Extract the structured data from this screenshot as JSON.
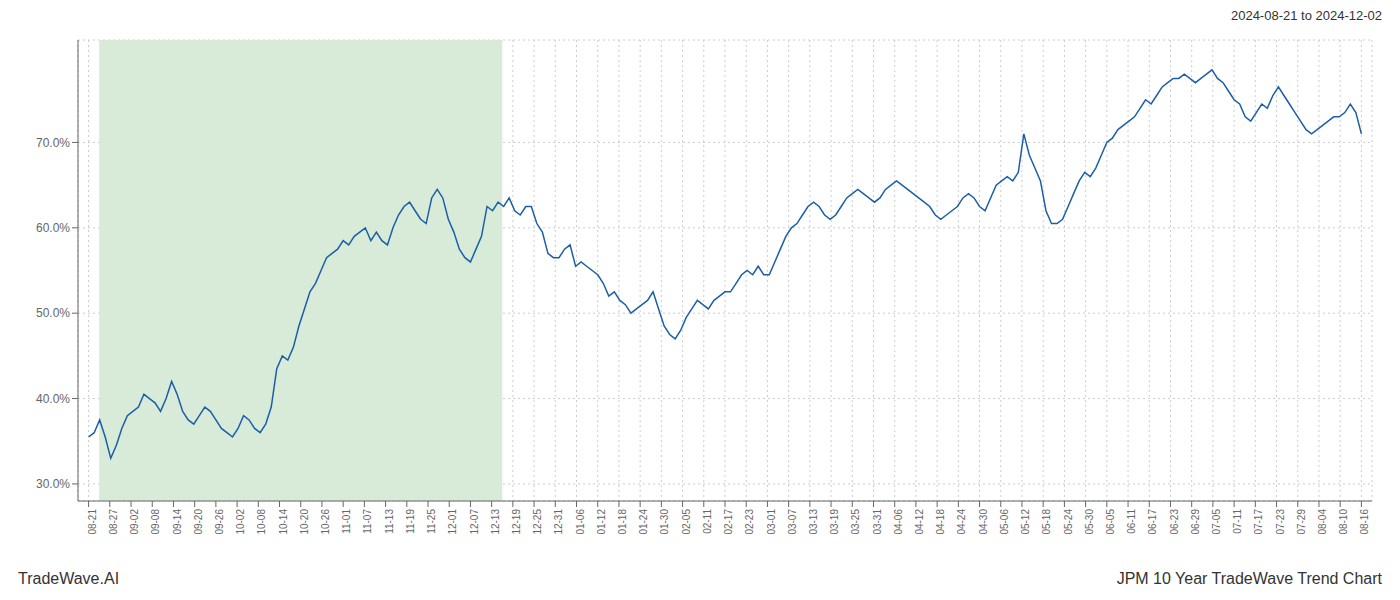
{
  "chart_data": {
    "type": "line",
    "title": "JPM 10 Year TradeWave Trend Chart",
    "subtitle": "2024-08-21 to 2024-12-02",
    "annotations": [
      "TradeWave.AI"
    ],
    "color": "#1a5fa8",
    "grid": true,
    "shade": {
      "x": [
        0.5,
        19.5
      ],
      "color": "#d8ead8"
    },
    "xlim": [
      -0.5,
      60.5
    ],
    "xticks": [
      {
        "value": 0,
        "label": "08-21"
      },
      {
        "value": 1,
        "label": "08-27"
      },
      {
        "value": 2,
        "label": "09-02"
      },
      {
        "value": 3,
        "label": "09-08"
      },
      {
        "value": 4,
        "label": "09-14"
      },
      {
        "value": 5,
        "label": "09-20"
      },
      {
        "value": 6,
        "label": "09-26"
      },
      {
        "value": 7,
        "label": "10-02"
      },
      {
        "value": 8,
        "label": "10-08"
      },
      {
        "value": 9,
        "label": "10-14"
      },
      {
        "value": 10,
        "label": "10-20"
      },
      {
        "value": 11,
        "label": "10-26"
      },
      {
        "value": 12,
        "label": "11-01"
      },
      {
        "value": 13,
        "label": "11-07"
      },
      {
        "value": 14,
        "label": "11-13"
      },
      {
        "value": 15,
        "label": "11-19"
      },
      {
        "value": 16,
        "label": "11-25"
      },
      {
        "value": 17,
        "label": "12-01"
      },
      {
        "value": 18,
        "label": "12-07"
      },
      {
        "value": 19,
        "label": "12-13"
      },
      {
        "value": 20,
        "label": "12-19"
      },
      {
        "value": 21,
        "label": "12-25"
      },
      {
        "value": 22,
        "label": "12-31"
      },
      {
        "value": 23,
        "label": "01-06"
      },
      {
        "value": 24,
        "label": "01-12"
      },
      {
        "value": 25,
        "label": "01-18"
      },
      {
        "value": 26,
        "label": "01-24"
      },
      {
        "value": 27,
        "label": "01-30"
      },
      {
        "value": 28,
        "label": "02-05"
      },
      {
        "value": 29,
        "label": "02-11"
      },
      {
        "value": 30,
        "label": "02-17"
      },
      {
        "value": 31,
        "label": "02-23"
      },
      {
        "value": 32,
        "label": "03-01"
      },
      {
        "value": 33,
        "label": "03-07"
      },
      {
        "value": 34,
        "label": "03-13"
      },
      {
        "value": 35,
        "label": "03-19"
      },
      {
        "value": 36,
        "label": "03-25"
      },
      {
        "value": 37,
        "label": "03-31"
      },
      {
        "value": 38,
        "label": "04-06"
      },
      {
        "value": 39,
        "label": "04-12"
      },
      {
        "value": 40,
        "label": "04-18"
      },
      {
        "value": 41,
        "label": "04-24"
      },
      {
        "value": 42,
        "label": "04-30"
      },
      {
        "value": 43,
        "label": "05-06"
      },
      {
        "value": 44,
        "label": "05-12"
      },
      {
        "value": 45,
        "label": "05-18"
      },
      {
        "value": 46,
        "label": "05-24"
      },
      {
        "value": 47,
        "label": "05-30"
      },
      {
        "value": 48,
        "label": "06-05"
      },
      {
        "value": 49,
        "label": "06-11"
      },
      {
        "value": 50,
        "label": "06-17"
      },
      {
        "value": 51,
        "label": "06-23"
      },
      {
        "value": 52,
        "label": "06-29"
      },
      {
        "value": 53,
        "label": "07-05"
      },
      {
        "value": 54,
        "label": "07-11"
      },
      {
        "value": 55,
        "label": "07-17"
      },
      {
        "value": 56,
        "label": "07-23"
      },
      {
        "value": 57,
        "label": "07-29"
      },
      {
        "value": 58,
        "label": "08-04"
      },
      {
        "value": 59,
        "label": "08-10"
      },
      {
        "value": 60,
        "label": "08-16"
      }
    ],
    "ylim": [
      28,
      82
    ],
    "yticks": [
      {
        "value": 30,
        "label": "30.0%"
      },
      {
        "value": 40,
        "label": "40.0%"
      },
      {
        "value": 50,
        "label": "50.0%"
      },
      {
        "value": 60,
        "label": "60.0%"
      },
      {
        "value": 70,
        "label": "70.0%"
      }
    ],
    "x": [
      0,
      0.26087,
      0.521739,
      0.782609,
      1.043478,
      1.304348,
      1.565217,
      1.826087,
      2.086957,
      2.347826,
      2.608696,
      2.869565,
      3.130435,
      3.391304,
      3.652174,
      3.913043,
      4.173913,
      4.434783,
      4.695652,
      4.956522,
      5.217391,
      5.478261,
      5.73913,
      6,
      6.26087,
      6.521739,
      6.782609,
      7.043478,
      7.304348,
      7.565217,
      7.826087,
      8.086957,
      8.347826,
      8.608696,
      8.869565,
      9.130435,
      9.391304,
      9.652174,
      9.913043,
      10.173913,
      10.434783,
      10.695652,
      10.956522,
      11.217391,
      11.478261,
      11.73913,
      12,
      12.26087,
      12.521739,
      12.782609,
      13.043478,
      13.304348,
      13.565217,
      13.826087,
      14.086957,
      14.347826,
      14.608696,
      14.869565,
      15.130435,
      15.391304,
      15.652174,
      15.913043,
      16.173913,
      16.434783,
      16.695652,
      16.956522,
      17.217391,
      17.478261,
      17.73913,
      18,
      18.26087,
      18.521739,
      18.782609,
      19.043478,
      19.304348,
      19.565217,
      19.826087,
      20.086957,
      20.347826,
      20.608696,
      20.869565,
      21.130435,
      21.391304,
      21.652174,
      21.913043,
      22.173913,
      22.434783,
      22.695652,
      22.956522,
      23.217391,
      23.478261,
      23.73913,
      24,
      24.26087,
      24.521739,
      24.782609,
      25.043478,
      25.304348,
      25.565217,
      25.826087,
      26.086957,
      26.347826,
      26.608696,
      26.869565,
      27.130435,
      27.391304,
      27.652174,
      27.913043,
      28.173913,
      28.434783,
      28.695652,
      28.956522,
      29.217391,
      29.478261,
      29.73913,
      30,
      30.26087,
      30.521739,
      30.782609,
      31.043478,
      31.304348,
      31.565217,
      31.826087,
      32.086957,
      32.347826,
      32.608696,
      32.869565,
      33.130435,
      33.391304,
      33.652174,
      33.913043,
      34.173913,
      34.434783,
      34.695652,
      34.956522,
      35.217391,
      35.478261,
      35.73913,
      36,
      36.26087,
      36.521739,
      36.782609,
      37.043478,
      37.304348,
      37.565217,
      37.826087,
      38.086957,
      38.347826,
      38.608696,
      38.869565,
      39.130435,
      39.391304,
      39.652174,
      39.913043,
      40.173913,
      40.434783,
      40.695652,
      40.956522,
      41.217391,
      41.478261,
      41.73913,
      42,
      42.26087,
      42.521739,
      42.782609,
      43.043478,
      43.304348,
      43.565217,
      43.826087,
      44.086957,
      44.347826,
      44.608696,
      44.869565,
      45.130435,
      45.391304,
      45.652174,
      45.913043,
      46.173913,
      46.434783,
      46.695652,
      46.956522,
      47.217391,
      47.478261,
      47.73913,
      48,
      48.26087,
      48.521739,
      48.782609,
      49.043478,
      49.304348,
      49.565217,
      49.826087,
      50.086957,
      50.347826,
      50.608696,
      50.869565,
      51.130435,
      51.391304,
      51.652174,
      51.913043,
      52.173913,
      52.434783,
      52.695652,
      52.956522,
      53.217391,
      53.478261,
      53.73913,
      54,
      54.26087,
      54.521739,
      54.782609,
      55.043478,
      55.304348,
      55.565217,
      55.826087,
      56.086957,
      56.347826,
      56.608696,
      56.869565,
      57.130435,
      57.391304,
      57.652174,
      57.913043,
      58.173913,
      58.434783,
      58.695652,
      58.956522,
      59.217391,
      59.478261,
      59.73913,
      60
    ],
    "values": [
      35.5,
      36.0,
      37.5,
      35.5,
      33.0,
      34.5,
      36.5,
      38.0,
      38.5,
      39.0,
      40.5,
      40.0,
      39.5,
      38.5,
      40.0,
      42.0,
      40.5,
      38.5,
      37.5,
      37.0,
      38.0,
      39.0,
      38.5,
      37.5,
      36.5,
      36.0,
      35.5,
      36.5,
      38.0,
      37.5,
      36.5,
      36.0,
      37.0,
      39.0,
      43.5,
      45.0,
      44.5,
      46.0,
      48.5,
      50.5,
      52.5,
      53.5,
      55.0,
      56.5,
      57.0,
      57.5,
      58.5,
      58.0,
      59.0,
      59.5,
      60.0,
      58.5,
      59.5,
      58.5,
      58.0,
      60.0,
      61.5,
      62.5,
      63.0,
      62.0,
      61.0,
      60.5,
      63.5,
      64.5,
      63.5,
      61.0,
      59.5,
      57.5,
      56.5,
      56.0,
      57.5,
      59.0,
      62.5,
      62.0,
      63.0,
      62.5,
      63.5,
      62.0,
      61.5,
      62.5,
      62.5,
      60.5,
      59.5,
      57.0,
      56.5,
      56.5,
      57.5,
      58.0,
      55.5,
      56.0,
      55.5,
      55.0,
      54.5,
      53.5,
      52.0,
      52.5,
      51.5,
      51.0,
      50.0,
      50.5,
      51.0,
      51.5,
      52.5,
      50.5,
      48.5,
      47.5,
      47.0,
      48.0,
      49.5,
      50.5,
      51.5,
      51.0,
      50.5,
      51.5,
      52.0,
      52.5,
      52.5,
      53.5,
      54.5,
      55.0,
      54.5,
      55.5,
      54.5,
      54.5,
      56.0,
      57.5,
      59.0,
      60.0,
      60.5,
      61.5,
      62.5,
      63.0,
      62.5,
      61.5,
      61.0,
      61.5,
      62.5,
      63.5,
      64.0,
      64.5,
      64.0,
      63.5,
      63.0,
      63.5,
      64.5,
      65.0,
      65.5,
      65.0,
      64.5,
      64.0,
      63.5,
      63.0,
      62.5,
      61.5,
      61.0,
      61.5,
      62.0,
      62.5,
      63.5,
      64.0,
      63.5,
      62.5,
      62.0,
      63.5,
      65.0,
      65.5,
      66.0,
      65.5,
      66.5,
      71.0,
      68.5,
      67.0,
      65.5,
      62.0,
      60.5,
      60.5,
      61.0,
      62.5,
      64.0,
      65.5,
      66.5,
      66.0,
      67.0,
      68.5,
      70.0,
      70.5,
      71.5,
      72.0,
      72.5,
      73.0,
      74.0,
      75.0,
      74.5,
      75.5,
      76.5,
      77.0,
      77.5,
      77.5,
      78.0,
      77.5,
      77.0,
      77.5,
      78.0,
      78.5,
      77.5,
      77.0,
      76.0,
      75.0,
      74.5,
      73.0,
      72.5,
      73.5,
      74.5,
      74.0,
      75.5,
      76.5,
      75.5,
      74.5,
      73.5,
      72.5,
      71.5,
      71.0,
      71.5,
      72.0,
      72.5,
      73.0,
      73.0,
      73.5,
      74.5,
      73.5,
      71.0
    ]
  }
}
